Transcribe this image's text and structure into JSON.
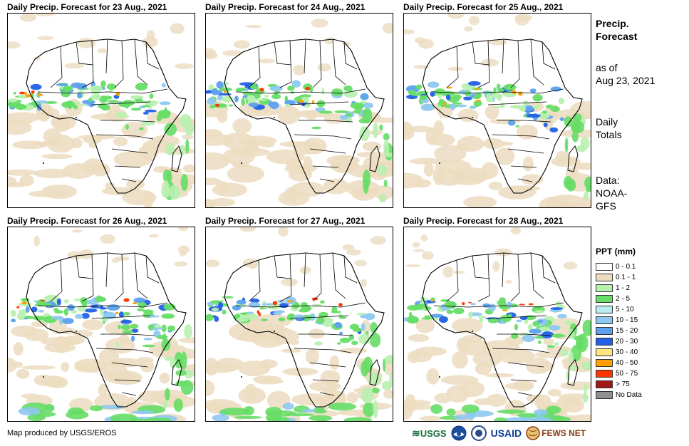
{
  "panels": [
    {
      "title": "Daily Precip. Forecast for 23 Aug., 2021"
    },
    {
      "title": "Daily Precip. Forecast for 24 Aug., 2021"
    },
    {
      "title": "Daily Precip. Forecast for 25 Aug., 2021"
    },
    {
      "title": "Daily Precip. Forecast for 26 Aug., 2021"
    },
    {
      "title": "Daily Precip. Forecast for 27 Aug., 2021"
    },
    {
      "title": "Daily Precip. Forecast for 28 Aug., 2021"
    }
  ],
  "sidebar": {
    "heading_line1": "Precip.",
    "heading_line2": "Forecast",
    "as_of_line1": "as of",
    "as_of_line2": "Aug 23, 2021",
    "totals_line1": "Daily",
    "totals_line2": "Totals",
    "data_line1": "Data:",
    "data_line2": "NOAA-",
    "data_line3": "GFS"
  },
  "legend": {
    "title": "PPT (mm)",
    "items": [
      {
        "label": "0 - 0.1",
        "color": "#ffffff"
      },
      {
        "label": "0.1 - 1",
        "color": "#ecdcc0"
      },
      {
        "label": "1 - 2",
        "color": "#b8f0b0"
      },
      {
        "label": "2 - 5",
        "color": "#66dd66"
      },
      {
        "label": "5 - 10",
        "color": "#b8eef2"
      },
      {
        "label": "10 - 15",
        "color": "#8ec8f0"
      },
      {
        "label": "15 - 20",
        "color": "#5ca0ee"
      },
      {
        "label": "20 - 30",
        "color": "#2260e6"
      },
      {
        "label": "30 - 40",
        "color": "#ffe680"
      },
      {
        "label": "40 - 50",
        "color": "#ffa000"
      },
      {
        "label": "50 - 75",
        "color": "#ff3800"
      },
      {
        "label": "> 75",
        "color": "#a01818"
      },
      {
        "label": "No Data",
        "color": "#909090"
      }
    ]
  },
  "footer": {
    "credit": "Map produced by USGS/EROS",
    "logos": [
      "USGS",
      "NOAA",
      "USAID",
      "FEWS NET"
    ],
    "usgs_text": "USGS",
    "usaid_text": "USAID",
    "fews_text": "FEWS NET"
  }
}
